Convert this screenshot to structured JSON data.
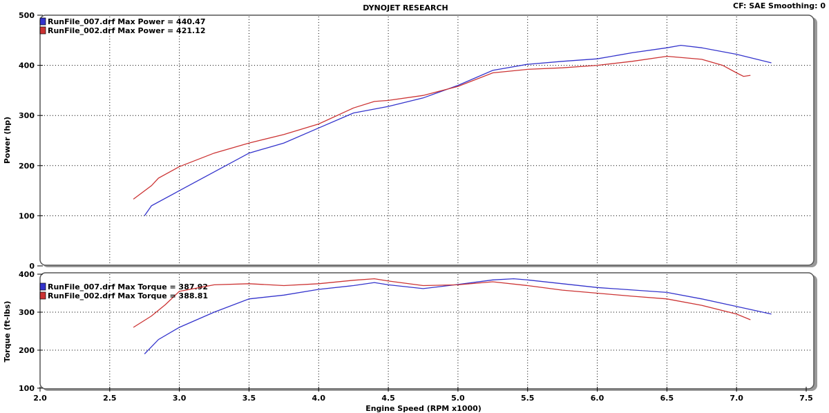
{
  "header": {
    "title": "DYNOJET RESEARCH",
    "settings": "CF: SAE  Smoothing: 0"
  },
  "colors": {
    "run007": "#3333cc",
    "run002": "#cc3333"
  },
  "chart_data": [
    {
      "type": "line",
      "title": "DYNOJET RESEARCH",
      "xlabel": "Engine Speed (RPM x1000)",
      "ylabel": "Power (hp)",
      "xlim": [
        2.0,
        7.5
      ],
      "ylim": [
        0,
        500
      ],
      "yticks": [
        "0",
        "100",
        "200",
        "300",
        "400",
        "500"
      ],
      "grid": true,
      "legend": "top-left",
      "series": [
        {
          "name": "RunFile_007.drf Max Power = 440.47",
          "color": "#3333cc",
          "x": [
            2.75,
            2.8,
            3.0,
            3.2,
            3.5,
            3.75,
            4.0,
            4.25,
            4.5,
            4.75,
            5.0,
            5.25,
            5.5,
            5.75,
            6.0,
            6.25,
            6.5,
            6.6,
            6.75,
            7.0,
            7.25
          ],
          "y": [
            100,
            120,
            150,
            180,
            225,
            245,
            275,
            305,
            318,
            335,
            360,
            390,
            402,
            408,
            413,
            425,
            435,
            440,
            435,
            422,
            405
          ]
        },
        {
          "name": "RunFile_002.drf Max Power = 421.12",
          "color": "#cc3333",
          "x": [
            2.67,
            2.8,
            2.85,
            3.0,
            3.25,
            3.5,
            3.75,
            4.0,
            4.25,
            4.4,
            4.5,
            4.75,
            5.0,
            5.25,
            5.5,
            5.75,
            6.0,
            6.25,
            6.5,
            6.75,
            6.9,
            7.0,
            7.05,
            7.1
          ],
          "y": [
            133,
            160,
            175,
            198,
            225,
            245,
            262,
            283,
            315,
            328,
            330,
            340,
            358,
            385,
            392,
            395,
            400,
            408,
            418,
            412,
            400,
            385,
            378,
            380
          ]
        }
      ]
    },
    {
      "type": "line",
      "xlabel": "Engine Speed (RPM x1000)",
      "ylabel": "Torque (ft-lbs)",
      "xlim": [
        2.0,
        7.5
      ],
      "ylim": [
        100,
        400
      ],
      "yticks": [
        "100",
        "200",
        "300",
        "400"
      ],
      "xticks": [
        "2.0",
        "2.5",
        "3.0",
        "3.5",
        "4.0",
        "4.5",
        "5.0",
        "5.5",
        "6.0",
        "6.5",
        "7.0",
        "7.5"
      ],
      "grid": true,
      "legend": "top-left",
      "series": [
        {
          "name": "RunFile_007.drf Max Torque = 387.92",
          "color": "#3333cc",
          "x": [
            2.75,
            2.85,
            3.0,
            3.25,
            3.5,
            3.75,
            4.0,
            4.25,
            4.4,
            4.5,
            4.75,
            5.0,
            5.25,
            5.4,
            5.5,
            5.75,
            6.0,
            6.5,
            6.75,
            7.0,
            7.25
          ],
          "y": [
            190,
            228,
            260,
            300,
            335,
            345,
            360,
            370,
            378,
            372,
            362,
            373,
            385,
            388,
            385,
            375,
            365,
            352,
            335,
            315,
            295
          ]
        },
        {
          "name": "RunFile_002.drf Max Torque = 388.81",
          "color": "#cc3333",
          "x": [
            2.67,
            2.8,
            2.9,
            3.0,
            3.25,
            3.5,
            3.75,
            4.0,
            4.25,
            4.4,
            4.5,
            4.75,
            5.0,
            5.25,
            5.5,
            5.75,
            6.0,
            6.25,
            6.5,
            6.75,
            7.0,
            7.1
          ],
          "y": [
            260,
            290,
            320,
            355,
            372,
            375,
            370,
            375,
            384,
            388,
            382,
            370,
            372,
            380,
            370,
            358,
            350,
            342,
            335,
            318,
            295,
            280
          ]
        }
      ]
    }
  ]
}
